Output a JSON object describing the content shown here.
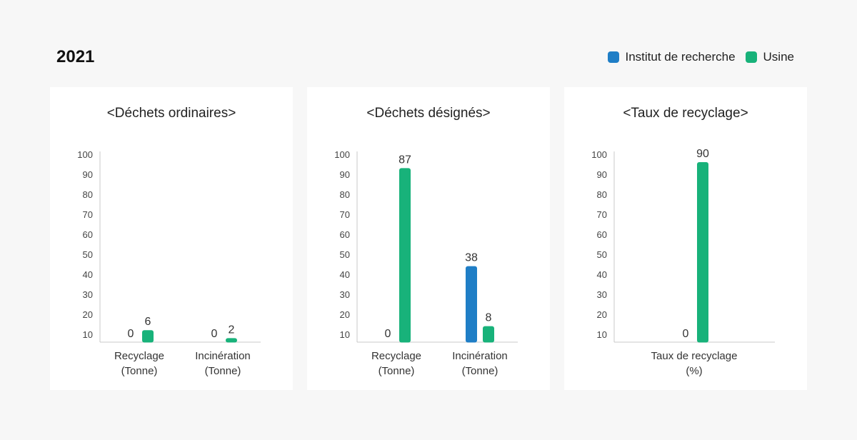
{
  "header": {
    "year": "2021"
  },
  "legend": [
    {
      "label": "Institut de recherche",
      "color": "#1f7ec6"
    },
    {
      "label": "Usine",
      "color": "#18b27a"
    }
  ],
  "chart_data": [
    {
      "type": "bar",
      "title": "<Déchets ordinaires>",
      "categories": [
        [
          "Recyclage",
          "(Tonne)"
        ],
        [
          "Incinération",
          "(Tonne)"
        ]
      ],
      "series": [
        {
          "name": "Institut de recherche",
          "values": [
            0,
            0
          ]
        },
        {
          "name": "Usine",
          "values": [
            6,
            2
          ]
        }
      ],
      "yticks": [
        10,
        20,
        30,
        40,
        50,
        60,
        70,
        80,
        90,
        100
      ],
      "ylim": [
        0,
        100
      ],
      "grid": false
    },
    {
      "type": "bar",
      "title": "<Déchets désignés>",
      "categories": [
        [
          "Recyclage",
          "(Tonne)"
        ],
        [
          "Incinération",
          "(Tonne)"
        ]
      ],
      "series": [
        {
          "name": "Institut de recherche",
          "values": [
            0,
            38
          ]
        },
        {
          "name": "Usine",
          "values": [
            87,
            8
          ]
        }
      ],
      "yticks": [
        10,
        20,
        30,
        40,
        50,
        60,
        70,
        80,
        90,
        100
      ],
      "ylim": [
        0,
        100
      ],
      "grid": false
    },
    {
      "type": "bar",
      "title": "<Taux de recyclage>",
      "categories": [
        [
          "Taux de recyclage",
          "(%)"
        ]
      ],
      "series": [
        {
          "name": "Institut de recherche",
          "values": [
            0
          ]
        },
        {
          "name": "Usine",
          "values": [
            90
          ]
        }
      ],
      "yticks": [
        10,
        20,
        30,
        40,
        50,
        60,
        70,
        80,
        90,
        100
      ],
      "ylim": [
        0,
        100
      ],
      "grid": false
    }
  ]
}
